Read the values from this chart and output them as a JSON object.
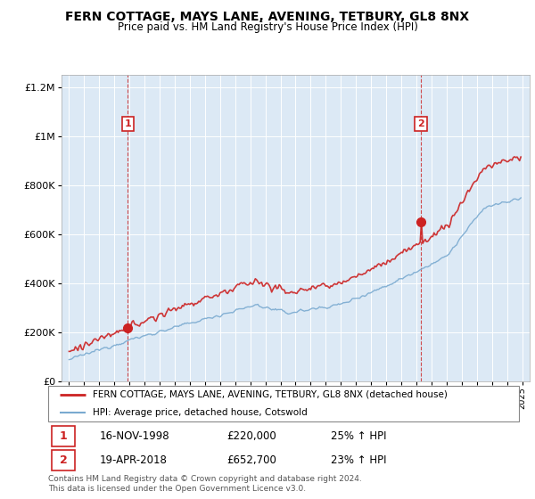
{
  "title": "FERN COTTAGE, MAYS LANE, AVENING, TETBURY, GL8 8NX",
  "subtitle": "Price paid vs. HM Land Registry's House Price Index (HPI)",
  "legend_line1": "FERN COTTAGE, MAYS LANE, AVENING, TETBURY, GL8 8NX (detached house)",
  "legend_line2": "HPI: Average price, detached house, Cotswold",
  "sale1_date": "16-NOV-1998",
  "sale1_price": "£220,000",
  "sale1_hpi": "25% ↑ HPI",
  "sale2_date": "19-APR-2018",
  "sale2_price": "£652,700",
  "sale2_hpi": "23% ↑ HPI",
  "footer": "Contains HM Land Registry data © Crown copyright and database right 2024.\nThis data is licensed under the Open Government Licence v3.0.",
  "hpi_color": "#7aaad0",
  "price_color": "#cc2222",
  "sale1_vline_x": 1998.88,
  "sale2_vline_x": 2018.3,
  "sale1_point_x": 1998.88,
  "sale1_point_y": 220000,
  "sale2_point_x": 2018.3,
  "sale2_point_y": 652700,
  "ylim": [
    0,
    1250000
  ],
  "xlim": [
    1994.5,
    2025.5
  ],
  "plot_bg": "#dce9f5",
  "grid_color": "#ffffff"
}
